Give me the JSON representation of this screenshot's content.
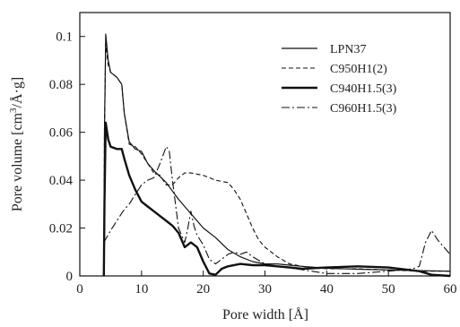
{
  "chart_data": {
    "type": "line",
    "title": "",
    "xlabel": "Pore width [Å]",
    "ylabel_main": "Pore volume [cm",
    "ylabel_sup": "3",
    "ylabel_tail": "/Å·g]",
    "xlim": [
      0,
      60
    ],
    "ylim": [
      0,
      0.11
    ],
    "x_ticks": [
      0,
      10,
      20,
      30,
      40,
      50,
      60
    ],
    "y_ticks": [
      0,
      0.02,
      0.04,
      0.06,
      0.08,
      0.1
    ],
    "y_tick_labels": [
      "0",
      "0.02",
      "0.04",
      "0.06",
      "0.08",
      "0.1"
    ],
    "grid": false,
    "legend_position": "top-right",
    "series": [
      {
        "name": "LPN37",
        "style": "solid-thin",
        "points": [
          [
            3.9,
            0
          ],
          [
            4.0,
            0.06
          ],
          [
            4.2,
            0.101
          ],
          [
            4.6,
            0.09
          ],
          [
            5,
            0.085
          ],
          [
            6,
            0.083
          ],
          [
            6.8,
            0.08
          ],
          [
            7.2,
            0.068
          ],
          [
            8,
            0.056
          ],
          [
            9,
            0.053
          ],
          [
            10,
            0.052
          ],
          [
            11,
            0.047
          ],
          [
            12,
            0.044
          ],
          [
            14,
            0.039
          ],
          [
            16,
            0.032
          ],
          [
            18,
            0.026
          ],
          [
            20,
            0.02
          ],
          [
            22,
            0.016
          ],
          [
            24,
            0.011
          ],
          [
            26,
            0.008
          ],
          [
            28,
            0.006
          ],
          [
            30,
            0.005
          ],
          [
            32,
            0.005
          ],
          [
            34,
            0.0045
          ],
          [
            36,
            0.004
          ],
          [
            40,
            0.0032
          ],
          [
            45,
            0.0028
          ],
          [
            50,
            0.0025
          ],
          [
            55,
            0.0022
          ],
          [
            60,
            0.002
          ]
        ]
      },
      {
        "name": "C950H1(2)",
        "style": "dashed",
        "points": [
          [
            3.9,
            0
          ],
          [
            4.0,
            0.06
          ],
          [
            4.2,
            0.097
          ],
          [
            4.6,
            0.088
          ],
          [
            5,
            0.085
          ],
          [
            6,
            0.083
          ],
          [
            6.8,
            0.08
          ],
          [
            7.2,
            0.068
          ],
          [
            8,
            0.055
          ],
          [
            9,
            0.054
          ],
          [
            10,
            0.051
          ],
          [
            11,
            0.047
          ],
          [
            12,
            0.043
          ],
          [
            13,
            0.042
          ],
          [
            14,
            0.038
          ],
          [
            15,
            0.038
          ],
          [
            16,
            0.041
          ],
          [
            17,
            0.043
          ],
          [
            18,
            0.043
          ],
          [
            20,
            0.042
          ],
          [
            22,
            0.04
          ],
          [
            24,
            0.039
          ],
          [
            25,
            0.036
          ],
          [
            26,
            0.032
          ],
          [
            27,
            0.026
          ],
          [
            28,
            0.02
          ],
          [
            29,
            0.015
          ],
          [
            30,
            0.012
          ],
          [
            32,
            0.008
          ],
          [
            34,
            0.005
          ],
          [
            36,
            0.004
          ],
          [
            40,
            0.003
          ],
          [
            45,
            0.003
          ],
          [
            50,
            0.0025
          ],
          [
            55,
            0.002
          ],
          [
            60,
            0.002
          ]
        ]
      },
      {
        "name": "C940H1.5(3)",
        "style": "solid-thick",
        "points": [
          [
            3.9,
            0
          ],
          [
            4.0,
            0.03
          ],
          [
            4.2,
            0.064
          ],
          [
            4.6,
            0.057
          ],
          [
            5,
            0.054
          ],
          [
            6,
            0.053
          ],
          [
            6.8,
            0.053
          ],
          [
            7.2,
            0.049
          ],
          [
            8,
            0.042
          ],
          [
            9,
            0.036
          ],
          [
            10,
            0.031
          ],
          [
            11,
            0.029
          ],
          [
            12,
            0.027
          ],
          [
            13,
            0.025
          ],
          [
            14,
            0.023
          ],
          [
            15,
            0.021
          ],
          [
            16,
            0.018
          ],
          [
            17,
            0.012
          ],
          [
            18,
            0.014
          ],
          [
            19,
            0.012
          ],
          [
            20,
            0.006
          ],
          [
            21,
            0.001
          ],
          [
            22,
            0.0005
          ],
          [
            23,
            0.003
          ],
          [
            24,
            0.004
          ],
          [
            26,
            0.005
          ],
          [
            28,
            0.0045
          ],
          [
            30,
            0.0045
          ],
          [
            32,
            0.004
          ],
          [
            34,
            0.0035
          ],
          [
            36,
            0.003
          ],
          [
            40,
            0.0035
          ],
          [
            45,
            0.004
          ],
          [
            50,
            0.0035
          ],
          [
            55,
            0.002
          ],
          [
            57,
            0.0005
          ],
          [
            60,
            0
          ]
        ]
      },
      {
        "name": "C960H1.5(3)",
        "style": "dash-dot",
        "points": [
          [
            3.9,
            0.014
          ],
          [
            5,
            0.019
          ],
          [
            6,
            0.023
          ],
          [
            7,
            0.027
          ],
          [
            8,
            0.03
          ],
          [
            9,
            0.034
          ],
          [
            10,
            0.038
          ],
          [
            11,
            0.04
          ],
          [
            12,
            0.041
          ],
          [
            13,
            0.047
          ],
          [
            14,
            0.054
          ],
          [
            14.5,
            0.052
          ],
          [
            15,
            0.04
          ],
          [
            16,
            0.02
          ],
          [
            17,
            0.014
          ],
          [
            17.5,
            0.02
          ],
          [
            18,
            0.027
          ],
          [
            18.5,
            0.021
          ],
          [
            19,
            0.017
          ],
          [
            20,
            0.013
          ],
          [
            21,
            0.007
          ],
          [
            22,
            0.005
          ],
          [
            23,
            0.007
          ],
          [
            24,
            0.009
          ],
          [
            25,
            0.01
          ],
          [
            26,
            0.009
          ],
          [
            27,
            0.01
          ],
          [
            28,
            0.008
          ],
          [
            30,
            0.005
          ],
          [
            32,
            0.004
          ],
          [
            35,
            0.003
          ],
          [
            40,
            0.001
          ],
          [
            45,
            0.001
          ],
          [
            50,
            0.002
          ],
          [
            54,
            0.003
          ],
          [
            55,
            0.004
          ],
          [
            56,
            0.014
          ],
          [
            57,
            0.019
          ],
          [
            58,
            0.015
          ],
          [
            59,
            0.012
          ],
          [
            60,
            0.009
          ]
        ]
      }
    ]
  }
}
